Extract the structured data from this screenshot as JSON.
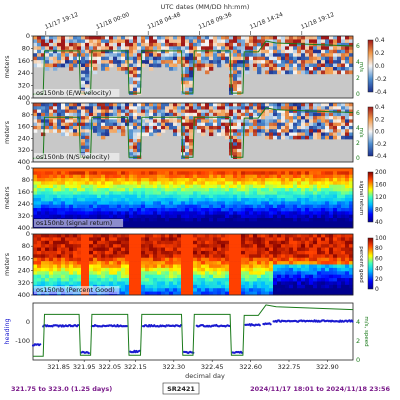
{
  "figure": {
    "top_title": "UTC dates (MM/DD hh:mm)",
    "top_ticks": [
      "11/17 19:12",
      "11/18 00:00",
      "11/18 04:48",
      "11/18 09:36",
      "11/18 14:24",
      "11/18 19:12"
    ],
    "xlabel": "decimal day",
    "x_ticks": [
      "321.85",
      "321.95",
      "322.05",
      "322.15",
      "322.30",
      "322.45",
      "322.60",
      "322.75",
      "322.90"
    ],
    "footer_left": "321.75 to 323.0 (1.25 days)",
    "footer_center": "SR2421",
    "footer_right": "2024/11/17 18:01 to 2024/11/18 23:56"
  },
  "chart_data": [
    {
      "type": "heatmap",
      "label": "os150nb (E/W velocity)",
      "ylabel": "meters",
      "y_ticks": [
        "0",
        "80",
        "160",
        "240",
        "320",
        "400"
      ],
      "colorbar_ticks": [
        "0.4",
        "0.2",
        "0.0",
        "-0.2",
        "-0.4"
      ],
      "colorbar_range": [
        -0.4,
        0.4
      ],
      "colormap": "diverging blue-white-red",
      "nodata_color": "#c8c8c8",
      "overlay_ticks": [
        "6",
        "4",
        "2",
        "0"
      ],
      "overlay_line_color": "#1a7a1a",
      "overlay_label": "m/s"
    },
    {
      "type": "heatmap",
      "label": "os150nb (N/S velocity)",
      "ylabel": "meters",
      "y_ticks": [
        "0",
        "80",
        "160",
        "240",
        "320",
        "400"
      ],
      "colorbar_ticks": [
        "0.4",
        "0.2",
        "0.0",
        "-0.2",
        "-0.4"
      ],
      "colorbar_range": [
        -0.4,
        0.4
      ],
      "colormap": "diverging blue-white-red",
      "nodata_color": "#c8c8c8",
      "overlay_ticks": [
        "6",
        "4",
        "2",
        "0"
      ],
      "overlay_line_color": "#1a7a1a",
      "overlay_label": "m/s"
    },
    {
      "type": "heatmap",
      "label": "os150nb (signal return)",
      "ylabel": "meters",
      "y_ticks": [
        "0",
        "80",
        "160",
        "240",
        "320",
        "400"
      ],
      "colorbar_ticks": [
        "200",
        "160",
        "120",
        "80",
        "40"
      ],
      "colorbar_range": [
        20,
        200
      ],
      "colormap": "jet",
      "colorbar_label": "signal return"
    },
    {
      "type": "heatmap",
      "label": "os150nb (Percent Good)",
      "ylabel": "meters",
      "y_ticks": [
        "0",
        "80",
        "160",
        "240",
        "320",
        "400"
      ],
      "colorbar_ticks": [
        "100",
        "80",
        "60",
        "40",
        "20",
        "0"
      ],
      "colorbar_range": [
        0,
        100
      ],
      "colormap": "jet",
      "colorbar_label": "percent good"
    },
    {
      "type": "line",
      "series": [
        {
          "name": "heading",
          "color": "#1a1ad0"
        },
        {
          "name": "ship speed",
          "color": "#1a7a1a"
        }
      ],
      "x_range": [
        321.75,
        323.0
      ],
      "left_ylabel": "heading",
      "left_ticks": [
        "0",
        "-100"
      ],
      "right_ylabel": "m/s, speed",
      "right_ticks": [
        "4",
        "2",
        "0"
      ],
      "right_ylim": [
        0,
        6
      ],
      "left_ylim": [
        -200,
        100
      ],
      "heading_segments": [
        {
          "x": [
            321.75,
            321.78
          ],
          "y": -120
        },
        {
          "x": [
            321.79,
            321.93
          ],
          "y": -20
        },
        {
          "x": [
            321.94,
            321.97
          ],
          "y": -160
        },
        {
          "x": [
            321.98,
            322.12
          ],
          "y": -20
        },
        {
          "x": [
            322.13,
            322.17
          ],
          "y": -155
        },
        {
          "x": [
            322.18,
            322.33
          ],
          "y": -20
        },
        {
          "x": [
            322.34,
            322.38
          ],
          "y": -160
        },
        {
          "x": [
            322.39,
            322.52
          ],
          "y": -20
        },
        {
          "x": [
            322.53,
            322.57
          ],
          "y": -160
        },
        {
          "x": [
            322.58,
            322.64
          ],
          "y": -15
        },
        {
          "x": [
            322.65,
            322.68
          ],
          "y": -10
        },
        {
          "x": [
            322.69,
            323.0
          ],
          "y": 5
        }
      ],
      "speed_points": [
        [
          321.75,
          0.4
        ],
        [
          321.79,
          0.4
        ],
        [
          321.795,
          4.8
        ],
        [
          321.93,
          4.8
        ],
        [
          321.935,
          0.5
        ],
        [
          321.975,
          0.5
        ],
        [
          321.98,
          4.8
        ],
        [
          322.12,
          4.8
        ],
        [
          322.125,
          0.5
        ],
        [
          322.17,
          0.5
        ],
        [
          322.175,
          4.8
        ],
        [
          322.33,
          4.8
        ],
        [
          322.335,
          0.5
        ],
        [
          322.375,
          0.5
        ],
        [
          322.38,
          4.8
        ],
        [
          322.52,
          4.8
        ],
        [
          322.525,
          0.5
        ],
        [
          322.57,
          0.5
        ],
        [
          322.575,
          4.7
        ],
        [
          322.63,
          4.7
        ],
        [
          322.66,
          5.8
        ],
        [
          322.7,
          5.6
        ],
        [
          323.0,
          5.3
        ]
      ]
    }
  ]
}
